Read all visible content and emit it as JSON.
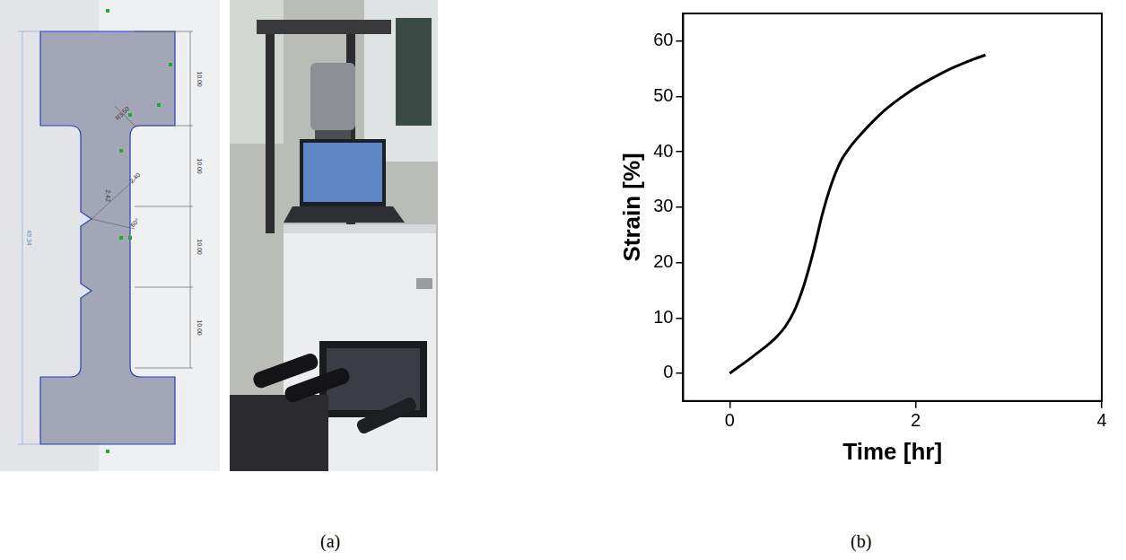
{
  "panel_labels": [
    "(a)",
    "(b)"
  ],
  "drawing": {
    "dimensions": [
      "R3.50",
      "10.00",
      "10.00",
      "10.00",
      "10.00",
      "2.40",
      "2.42",
      "60°",
      "49.34"
    ]
  },
  "chart_data": {
    "type": "line",
    "x_label": "Time [hr]",
    "y_label": "Strain [%]",
    "x": [
      0,
      0.1,
      0.2,
      0.3,
      0.4,
      0.5,
      0.6,
      0.7,
      0.8,
      0.9,
      1.0,
      1.1,
      1.2,
      1.3,
      1.4,
      1.5,
      1.6,
      1.7,
      1.8,
      1.9,
      2.0,
      2.2,
      2.4,
      2.6,
      2.75
    ],
    "values": [
      0,
      1.2,
      2.4,
      3.7,
      5.0,
      6.5,
      8.5,
      11.5,
      16,
      22,
      29,
      34.5,
      38.5,
      41,
      43,
      44.8,
      46.5,
      48,
      49.3,
      50.5,
      51.6,
      53.5,
      55.2,
      56.6,
      57.5
    ],
    "color": "#000000",
    "xlim": [
      -0.5,
      4
    ],
    "xticks": [
      0,
      2,
      4
    ],
    "ylim": [
      -5,
      65
    ],
    "yticks": [
      0,
      10,
      20,
      30,
      40,
      50,
      60
    ],
    "grid": false
  }
}
